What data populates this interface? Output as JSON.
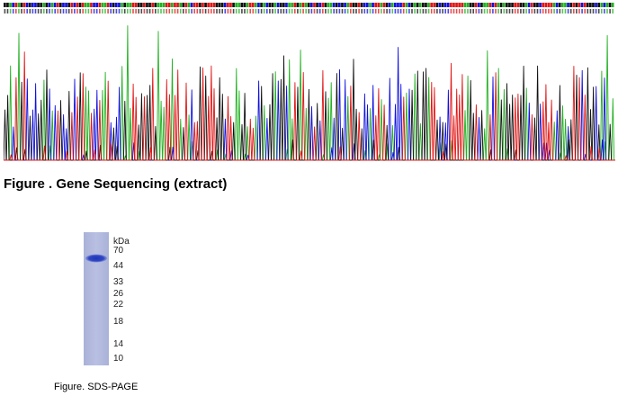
{
  "figure_sequencing": {
    "caption": "Figure . Gene Sequencing (extract)",
    "trace_colors": {
      "A": "#22b022",
      "C": "#1010e0",
      "G": "#111111",
      "T": "#e01515"
    }
  },
  "figure_gel": {
    "unit_label": "kDa",
    "markers": [
      "70",
      "44",
      "33",
      "26",
      "22",
      "18",
      "14",
      "10"
    ],
    "caption": "Figure. SDS-PAGE"
  }
}
